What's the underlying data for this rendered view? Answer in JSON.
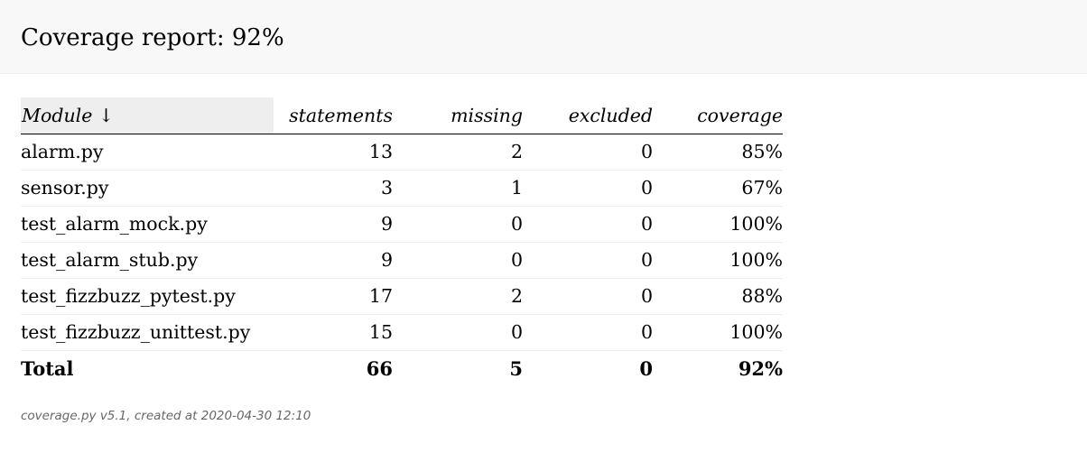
{
  "header": {
    "title": "Coverage report: 92%"
  },
  "table": {
    "columns": {
      "module": "Module ↓",
      "statements": "statements",
      "missing": "missing",
      "excluded": "excluded",
      "coverage": "coverage"
    },
    "rows": [
      {
        "name": "alarm.py",
        "statements": "13",
        "missing": "2",
        "excluded": "0",
        "coverage": "85%"
      },
      {
        "name": "sensor.py",
        "statements": "3",
        "missing": "1",
        "excluded": "0",
        "coverage": "67%"
      },
      {
        "name": "test_alarm_mock.py",
        "statements": "9",
        "missing": "0",
        "excluded": "0",
        "coverage": "100%"
      },
      {
        "name": "test_alarm_stub.py",
        "statements": "9",
        "missing": "0",
        "excluded": "0",
        "coverage": "100%"
      },
      {
        "name": "test_fizzbuzz_pytest.py",
        "statements": "17",
        "missing": "2",
        "excluded": "0",
        "coverage": "88%"
      },
      {
        "name": "test_fizzbuzz_unittest.py",
        "statements": "15",
        "missing": "0",
        "excluded": "0",
        "coverage": "100%"
      }
    ],
    "total": {
      "name": "Total",
      "statements": "66",
      "missing": "5",
      "excluded": "0",
      "coverage": "92%"
    }
  },
  "footer": {
    "text": "coverage.py v5.1, created at 2020-04-30 12:10"
  },
  "colors": {
    "header_background": "#f8f8f8",
    "sorted_column_background": "#eeeeee",
    "row_divider": "#eeeeee",
    "footer_text": "#666666"
  }
}
